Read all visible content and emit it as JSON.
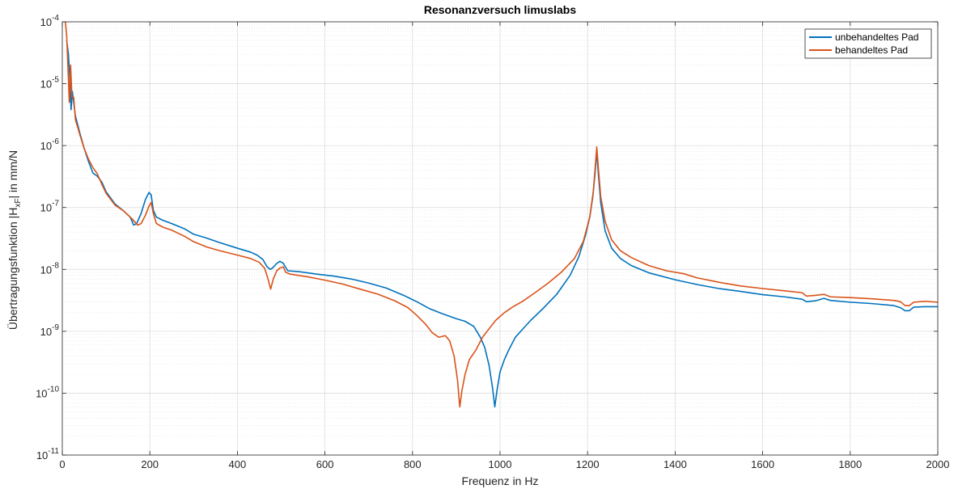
{
  "chart_data": {
    "type": "line",
    "title": "Resonanzversuch limuslabs",
    "xlabel": "Frequenz in Hz",
    "ylabel": {
      "prefix": "Übertragungsfunktion |H",
      "subscript": "xF",
      "suffix": "| in mm/N"
    },
    "xlim": [
      0,
      2000
    ],
    "ylim": [
      1e-11,
      0.0001
    ],
    "yscale": "log",
    "grid": true,
    "minor_grid": true,
    "legend_position": "top-right",
    "x_ticks": [
      0,
      200,
      400,
      600,
      800,
      1000,
      1200,
      1400,
      1600,
      1800,
      2000
    ],
    "x_tick_labels": [
      "0",
      "200",
      "400",
      "600",
      "800",
      "1000",
      "1200",
      "1400",
      "1600",
      "1800",
      "2000"
    ],
    "y_ticks": [
      {
        "value": 1e-11,
        "base": "10",
        "exp": "-11"
      },
      {
        "value": 1e-10,
        "base": "10",
        "exp": "-10"
      },
      {
        "value": 1e-09,
        "base": "10",
        "exp": "-9"
      },
      {
        "value": 1e-08,
        "base": "10",
        "exp": "-8"
      },
      {
        "value": 1e-07,
        "base": "10",
        "exp": "-7"
      },
      {
        "value": 1e-06,
        "base": "10",
        "exp": "-6"
      },
      {
        "value": 1e-05,
        "base": "10",
        "exp": "-5"
      },
      {
        "value": 0.0001,
        "base": "10",
        "exp": "-4"
      }
    ],
    "series": [
      {
        "name": "unbehandeltes Pad",
        "color": "#0072BD",
        "points": [
          [
            10,
            5e-05
          ],
          [
            14,
            3e-05
          ],
          [
            18,
            1e-05
          ],
          [
            20,
            3.8e-06
          ],
          [
            23,
            7.5e-06
          ],
          [
            26,
            5e-06
          ],
          [
            30,
            3e-06
          ],
          [
            35,
            2.2e-06
          ],
          [
            40,
            1.6e-06
          ],
          [
            50,
            9e-07
          ],
          [
            60,
            5.5e-07
          ],
          [
            70,
            3.6e-07
          ],
          [
            80,
            3.2e-07
          ],
          [
            90,
            2.6e-07
          ],
          [
            100,
            1.8e-07
          ],
          [
            120,
            1.15e-07
          ],
          [
            140,
            8.8e-08
          ],
          [
            155,
            7e-08
          ],
          [
            163,
            5.2e-08
          ],
          [
            170,
            5.5e-08
          ],
          [
            180,
            8e-08
          ],
          [
            190,
            1.35e-07
          ],
          [
            198,
            1.75e-07
          ],
          [
            203,
            1.6e-07
          ],
          [
            208,
            9e-08
          ],
          [
            215,
            7e-08
          ],
          [
            230,
            6.2e-08
          ],
          [
            250,
            5.5e-08
          ],
          [
            280,
            4.5e-08
          ],
          [
            300,
            3.7e-08
          ],
          [
            330,
            3.2e-08
          ],
          [
            360,
            2.7e-08
          ],
          [
            400,
            2.2e-08
          ],
          [
            430,
            1.9e-08
          ],
          [
            445,
            1.7e-08
          ],
          [
            458,
            1.45e-08
          ],
          [
            468,
            1.1e-08
          ],
          [
            475,
            1e-08
          ],
          [
            480,
            1.05e-08
          ],
          [
            490,
            1.25e-08
          ],
          [
            497,
            1.35e-08
          ],
          [
            505,
            1.25e-08
          ],
          [
            515,
            9.5e-09
          ],
          [
            540,
            9.2e-09
          ],
          [
            580,
            8.4e-09
          ],
          [
            620,
            7.8e-09
          ],
          [
            660,
            7e-09
          ],
          [
            700,
            6e-09
          ],
          [
            740,
            5e-09
          ],
          [
            780,
            3.8e-09
          ],
          [
            810,
            3e-09
          ],
          [
            840,
            2.3e-09
          ],
          [
            870,
            1.9e-09
          ],
          [
            900,
            1.6e-09
          ],
          [
            920,
            1.45e-09
          ],
          [
            940,
            1.2e-09
          ],
          [
            955,
            8e-10
          ],
          [
            965,
            5.5e-10
          ],
          [
            975,
            2.8e-10
          ],
          [
            983,
            1.2e-10
          ],
          [
            988,
            6e-11
          ],
          [
            993,
            1.1e-10
          ],
          [
            1000,
            2.2e-10
          ],
          [
            1010,
            3.5e-10
          ],
          [
            1020,
            5e-10
          ],
          [
            1035,
            8e-10
          ],
          [
            1050,
            1.05e-09
          ],
          [
            1070,
            1.5e-09
          ],
          [
            1100,
            2.4e-09
          ],
          [
            1130,
            4e-09
          ],
          [
            1160,
            8e-09
          ],
          [
            1180,
            1.6e-08
          ],
          [
            1195,
            3.5e-08
          ],
          [
            1205,
            7e-08
          ],
          [
            1212,
            1.5e-07
          ],
          [
            1217,
            3.5e-07
          ],
          [
            1221,
            8e-07
          ],
          [
            1225,
            3.2e-07
          ],
          [
            1230,
            1.2e-07
          ],
          [
            1240,
            4.2e-08
          ],
          [
            1255,
            2.2e-08
          ],
          [
            1275,
            1.5e-08
          ],
          [
            1300,
            1.15e-08
          ],
          [
            1340,
            8.8e-09
          ],
          [
            1400,
            6.8e-09
          ],
          [
            1450,
            5.7e-09
          ],
          [
            1500,
            4.9e-09
          ],
          [
            1550,
            4.4e-09
          ],
          [
            1600,
            3.9e-09
          ],
          [
            1650,
            3.6e-09
          ],
          [
            1690,
            3.3e-09
          ],
          [
            1700,
            3e-09
          ],
          [
            1720,
            3.1e-09
          ],
          [
            1740,
            3.4e-09
          ],
          [
            1755,
            3.15e-09
          ],
          [
            1800,
            2.95e-09
          ],
          [
            1850,
            2.8e-09
          ],
          [
            1900,
            2.6e-09
          ],
          [
            1915,
            2.4e-09
          ],
          [
            1925,
            2.15e-09
          ],
          [
            1935,
            2.15e-09
          ],
          [
            1945,
            2.45e-09
          ],
          [
            1970,
            2.5e-09
          ],
          [
            2000,
            2.5e-09
          ]
        ]
      },
      {
        "name": "behandeltes Pad",
        "color": "#D95319",
        "points": [
          [
            7,
            0.0001
          ],
          [
            10,
            6e-05
          ],
          [
            13,
            1.8e-05
          ],
          [
            16,
            5e-06
          ],
          [
            19,
            2e-05
          ],
          [
            22,
            6e-06
          ],
          [
            26,
            6e-06
          ],
          [
            30,
            2.6e-06
          ],
          [
            35,
            2e-06
          ],
          [
            40,
            1.5e-06
          ],
          [
            50,
            9e-07
          ],
          [
            60,
            6e-07
          ],
          [
            70,
            4.4e-07
          ],
          [
            80,
            3.5e-07
          ],
          [
            90,
            2.4e-07
          ],
          [
            100,
            1.7e-07
          ],
          [
            120,
            1.1e-07
          ],
          [
            140,
            8.8e-08
          ],
          [
            160,
            6.5e-08
          ],
          [
            172,
            5.2e-08
          ],
          [
            180,
            5.5e-08
          ],
          [
            190,
            7.5e-08
          ],
          [
            198,
            1.05e-07
          ],
          [
            203,
            1.2e-07
          ],
          [
            208,
            8e-08
          ],
          [
            215,
            5.5e-08
          ],
          [
            230,
            4.8e-08
          ],
          [
            250,
            4.3e-08
          ],
          [
            280,
            3.4e-08
          ],
          [
            300,
            2.8e-08
          ],
          [
            330,
            2.3e-08
          ],
          [
            360,
            2e-08
          ],
          [
            400,
            1.7e-08
          ],
          [
            430,
            1.5e-08
          ],
          [
            450,
            1.3e-08
          ],
          [
            462,
            1.05e-08
          ],
          [
            470,
            7e-09
          ],
          [
            476,
            4.8e-09
          ],
          [
            482,
            7e-09
          ],
          [
            490,
            9.5e-09
          ],
          [
            497,
            1.05e-08
          ],
          [
            505,
            1.1e-08
          ],
          [
            510,
            9e-09
          ],
          [
            520,
            8.4e-09
          ],
          [
            560,
            7.6e-09
          ],
          [
            600,
            6.7e-09
          ],
          [
            640,
            5.8e-09
          ],
          [
            680,
            4.8e-09
          ],
          [
            720,
            4e-09
          ],
          [
            760,
            3.1e-09
          ],
          [
            790,
            2.4e-09
          ],
          [
            810,
            1.8e-09
          ],
          [
            830,
            1.3e-09
          ],
          [
            845,
            9.5e-10
          ],
          [
            860,
            8e-10
          ],
          [
            875,
            8.5e-10
          ],
          [
            885,
            7e-10
          ],
          [
            895,
            4e-10
          ],
          [
            903,
            1.6e-10
          ],
          [
            908,
            6e-11
          ],
          [
            913,
            1.1e-10
          ],
          [
            920,
            2e-10
          ],
          [
            930,
            3.5e-10
          ],
          [
            945,
            5e-10
          ],
          [
            960,
            8e-10
          ],
          [
            975,
            1.1e-09
          ],
          [
            990,
            1.5e-09
          ],
          [
            1010,
            2e-09
          ],
          [
            1030,
            2.5e-09
          ],
          [
            1050,
            3e-09
          ],
          [
            1080,
            4.2e-09
          ],
          [
            1110,
            6e-09
          ],
          [
            1140,
            9e-09
          ],
          [
            1170,
            1.5e-08
          ],
          [
            1190,
            2.8e-08
          ],
          [
            1205,
            7e-08
          ],
          [
            1213,
            1.8e-07
          ],
          [
            1218,
            5e-07
          ],
          [
            1221,
            9.5e-07
          ],
          [
            1225,
            4e-07
          ],
          [
            1230,
            1.5e-07
          ],
          [
            1240,
            6e-08
          ],
          [
            1255,
            3e-08
          ],
          [
            1275,
            2e-08
          ],
          [
            1300,
            1.55e-08
          ],
          [
            1340,
            1.15e-08
          ],
          [
            1380,
            9.5e-09
          ],
          [
            1420,
            8.5e-09
          ],
          [
            1450,
            7.3e-09
          ],
          [
            1500,
            6.2e-09
          ],
          [
            1550,
            5.4e-09
          ],
          [
            1600,
            4.9e-09
          ],
          [
            1650,
            4.5e-09
          ],
          [
            1690,
            4.2e-09
          ],
          [
            1700,
            3.7e-09
          ],
          [
            1720,
            3.8e-09
          ],
          [
            1740,
            3.95e-09
          ],
          [
            1755,
            3.6e-09
          ],
          [
            1800,
            3.5e-09
          ],
          [
            1850,
            3.35e-09
          ],
          [
            1900,
            3.15e-09
          ],
          [
            1915,
            3e-09
          ],
          [
            1925,
            2.6e-09
          ],
          [
            1935,
            2.6e-09
          ],
          [
            1945,
            2.95e-09
          ],
          [
            1970,
            3.05e-09
          ],
          [
            2000,
            2.95e-09
          ]
        ]
      }
    ]
  }
}
